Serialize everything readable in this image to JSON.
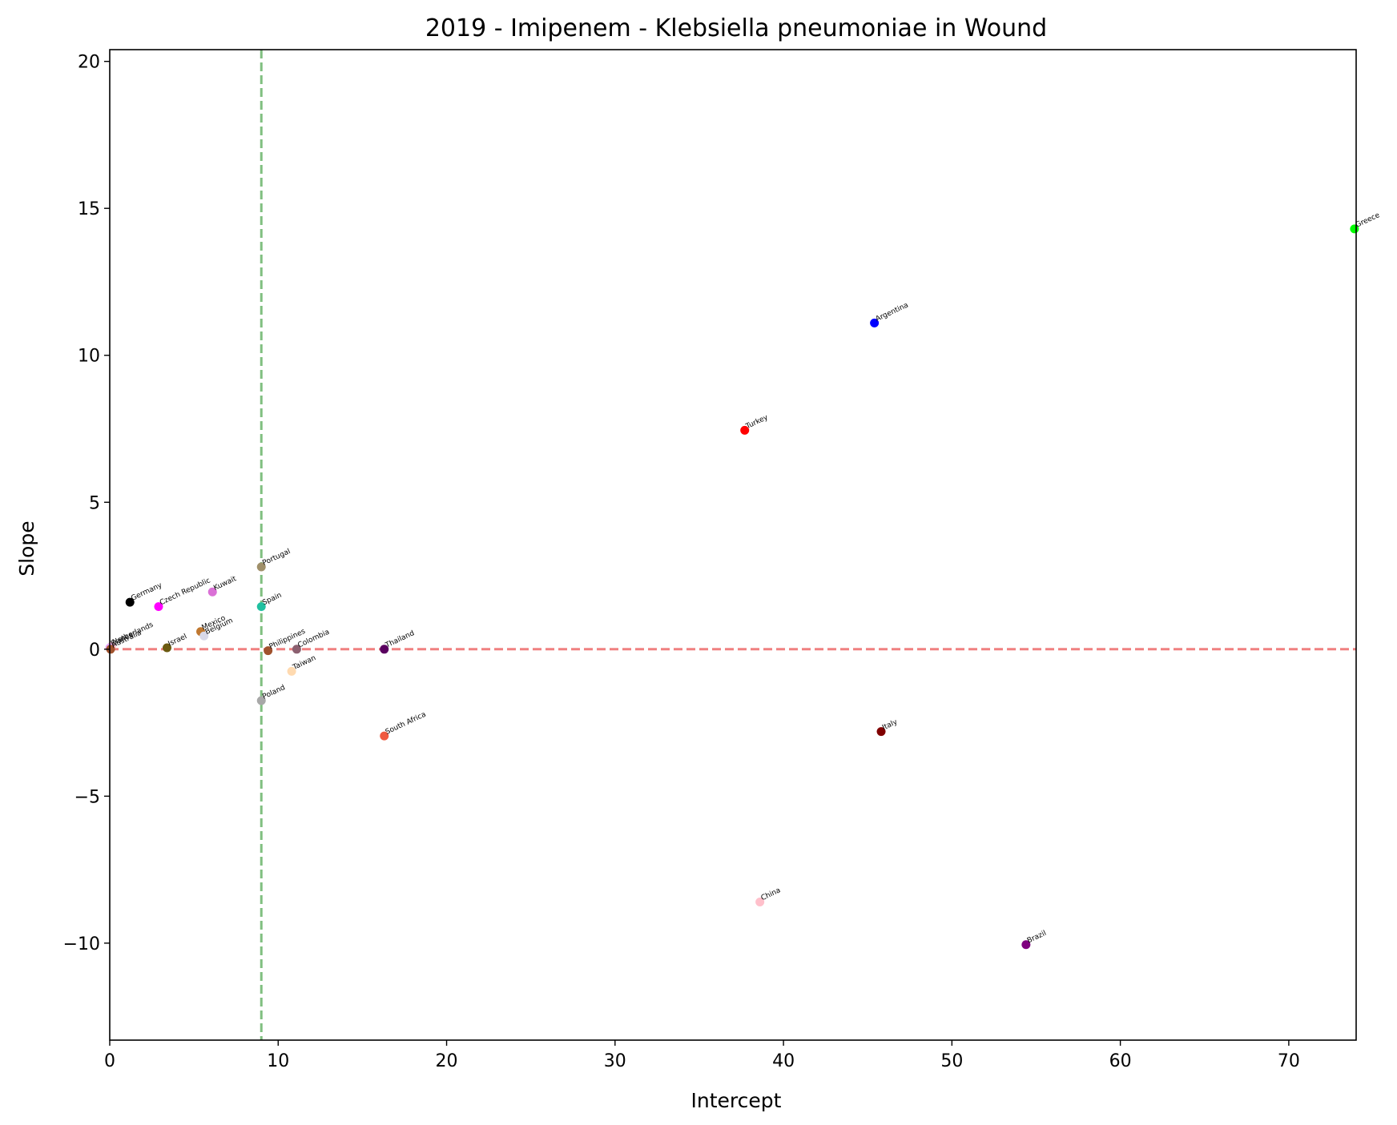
{
  "chart_data": {
    "type": "scatter",
    "title": "2019 - Imipenem - Klebsiella pneumoniae in Wound",
    "xlabel": "Intercept",
    "ylabel": "Slope",
    "xlim": [
      0,
      74
    ],
    "ylim": [
      -13.3,
      20.4
    ],
    "xticks": [
      0,
      10,
      20,
      30,
      40,
      50,
      60,
      70
    ],
    "xtick_labels": [
      "0",
      "10",
      "20",
      "30",
      "40",
      "50",
      "60",
      "70"
    ],
    "yticks": [
      -10,
      -5,
      0,
      5,
      10,
      15,
      20
    ],
    "ytick_labels": [
      "−10",
      "−5",
      "0",
      "5",
      "10",
      "15",
      "20"
    ],
    "grid": false,
    "reference_lines": [
      {
        "orientation": "horizontal",
        "value": 0,
        "color": "#f08080",
        "style": "dashed"
      },
      {
        "orientation": "vertical",
        "value": 9,
        "color": "#80bf80",
        "style": "dashed"
      }
    ],
    "points": [
      {
        "label": "Greece",
        "x": 73.9,
        "y": 14.3,
        "color": "#00ff00"
      },
      {
        "label": "Argentina",
        "x": 45.4,
        "y": 11.1,
        "color": "#0000ff"
      },
      {
        "label": "Turkey",
        "x": 37.7,
        "y": 7.45,
        "color": "#ff0000"
      },
      {
        "label": "Portugal",
        "x": 9.0,
        "y": 2.8,
        "color": "#a0906a"
      },
      {
        "label": "Germany",
        "x": 1.2,
        "y": 1.6,
        "color": "#000000"
      },
      {
        "label": "Czech Republic",
        "x": 2.9,
        "y": 1.45,
        "color": "#ff00ff"
      },
      {
        "label": "Kuwait",
        "x": 6.1,
        "y": 1.95,
        "color": "#da70d6"
      },
      {
        "label": "Spain",
        "x": 9.0,
        "y": 1.45,
        "color": "#20c0a0"
      },
      {
        "label": "Mexico",
        "x": 5.4,
        "y": 0.6,
        "color": "#c07830"
      },
      {
        "label": "Belgium",
        "x": 5.6,
        "y": 0.45,
        "color": "#d8d8e8"
      },
      {
        "label": "Israel",
        "x": 3.4,
        "y": 0.05,
        "color": "#6b5a10"
      },
      {
        "label": "Netherlands",
        "x": 0.1,
        "y": 0.1,
        "color": "#f2b7c9"
      },
      {
        "label": "France",
        "x": 0.0,
        "y": 0.05,
        "color": "#e6a8ff"
      },
      {
        "label": "Australia",
        "x": 0.05,
        "y": 0.0,
        "color": "#a0522d"
      },
      {
        "label": "Philippines",
        "x": 9.4,
        "y": -0.05,
        "color": "#a0522d"
      },
      {
        "label": "Colombia",
        "x": 11.1,
        "y": 0.0,
        "color": "#8c6070"
      },
      {
        "label": "Thailand",
        "x": 16.3,
        "y": 0.0,
        "color": "#5a0060"
      },
      {
        "label": "Taiwan",
        "x": 10.8,
        "y": -0.75,
        "color": "#ffdab0"
      },
      {
        "label": "Poland",
        "x": 9.0,
        "y": -1.75,
        "color": "#a8a8a8"
      },
      {
        "label": "South Africa",
        "x": 16.3,
        "y": -2.95,
        "color": "#f05a40"
      },
      {
        "label": "Italy",
        "x": 45.8,
        "y": -2.8,
        "color": "#800000"
      },
      {
        "label": "China",
        "x": 38.6,
        "y": -8.6,
        "color": "#ffc0cb"
      },
      {
        "label": "Brazil",
        "x": 54.4,
        "y": -10.05,
        "color": "#800080"
      }
    ]
  }
}
